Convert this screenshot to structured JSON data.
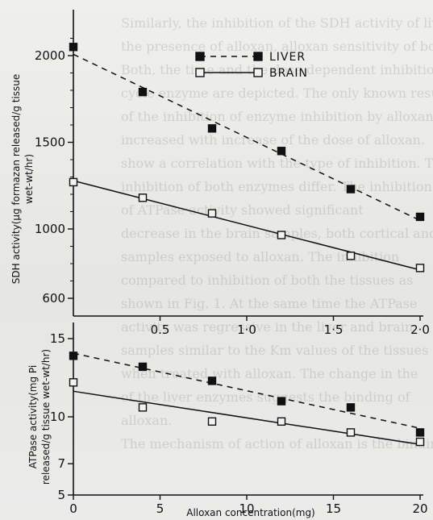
{
  "chart_data": [
    {
      "type": "line",
      "panel": "top",
      "ylabel_line1": "SDH activity(μg formazan released/g tissue",
      "ylabel_line2": "wet-wt/hr)",
      "x": [
        0,
        4,
        8,
        12,
        16,
        20
      ],
      "xlim": [
        0,
        20
      ],
      "ylim": [
        600,
        2200
      ],
      "y_ticks": [
        "600",
        "1000",
        "1500",
        "2000"
      ],
      "y_tick_values": [
        600,
        1000,
        1500,
        2000
      ],
      "x_ticks": [
        "0.5",
        "1·0",
        "1·5",
        "2·0"
      ],
      "x_tick_values": [
        5,
        10,
        15,
        20
      ],
      "grid": false,
      "legend_position": "top-right",
      "series": [
        {
          "name": "LIVER",
          "marker": "filled-square",
          "line": "dashed",
          "values": [
            2050,
            1790,
            1580,
            1450,
            1230,
            1070
          ]
        },
        {
          "name": "BRAIN",
          "marker": "open-square",
          "line": "solid",
          "values": [
            1270,
            1180,
            1090,
            965,
            845,
            775
          ]
        }
      ]
    },
    {
      "type": "line",
      "panel": "bottom",
      "xlabel": "Alloxan concentration(mg)",
      "ylabel_line1": "ATPase activity(mg Pi",
      "ylabel_line2": "released/g tissue wet-wt/hr)",
      "x": [
        0,
        4,
        8,
        12,
        16,
        20
      ],
      "xlim": [
        0,
        20
      ],
      "ylim": [
        5,
        16
      ],
      "y_ticks": [
        "5",
        "7",
        "10",
        "15"
      ],
      "y_tick_values": [
        5,
        7,
        10,
        15
      ],
      "x_ticks": [
        "0",
        "5",
        "10",
        "15",
        "20"
      ],
      "x_tick_values": [
        0,
        5,
        10,
        15,
        20
      ],
      "grid": false,
      "series": [
        {
          "name": "LIVER",
          "marker": "filled-square",
          "line": "dashed",
          "values": [
            13.9,
            13.2,
            12.3,
            11.0,
            10.6,
            9.0
          ]
        },
        {
          "name": "BRAIN",
          "marker": "open-square",
          "line": "solid",
          "values": [
            12.2,
            10.6,
            9.7,
            9.7,
            9.0,
            8.4
          ]
        }
      ]
    }
  ],
  "background_text": [
    "Similarly, the inhibition of the SDH activity of liver was",
    "the presence of alloxan, alloxan sensitivity of both the tissues.",
    "Both, the time and the dose dependent inhibition of the Krebs",
    "cycle enzyme are depicted. The only known result",
    "of the inhibition of enzyme inhibition by alloxan.",
    "increased with increase of the dose of alloxan.",
    "show a correlation with the type of inhibition. The type of",
    "inhibition of both enzymes differ. The inhibition",
    "of ATPase activity showed significant",
    "decrease in the brain samples, both cortical and cerebellar",
    "samples exposed to alloxan. The inhibition",
    "compared to inhibition of both the tissues as",
    "shown in Fig. 1. At the same time the ATPase",
    "activity was regressive in the liver and brain",
    "samples similar to the Km values of the tissues",
    "when treated with alloxan. The change in the",
    "of the liver enzymes suggests the binding of",
    "alloxan.",
    "",
    "The mechanism of action of alloxan is the binding"
  ],
  "colors": {
    "ink": "#111111",
    "paper": "#ebebe9"
  }
}
